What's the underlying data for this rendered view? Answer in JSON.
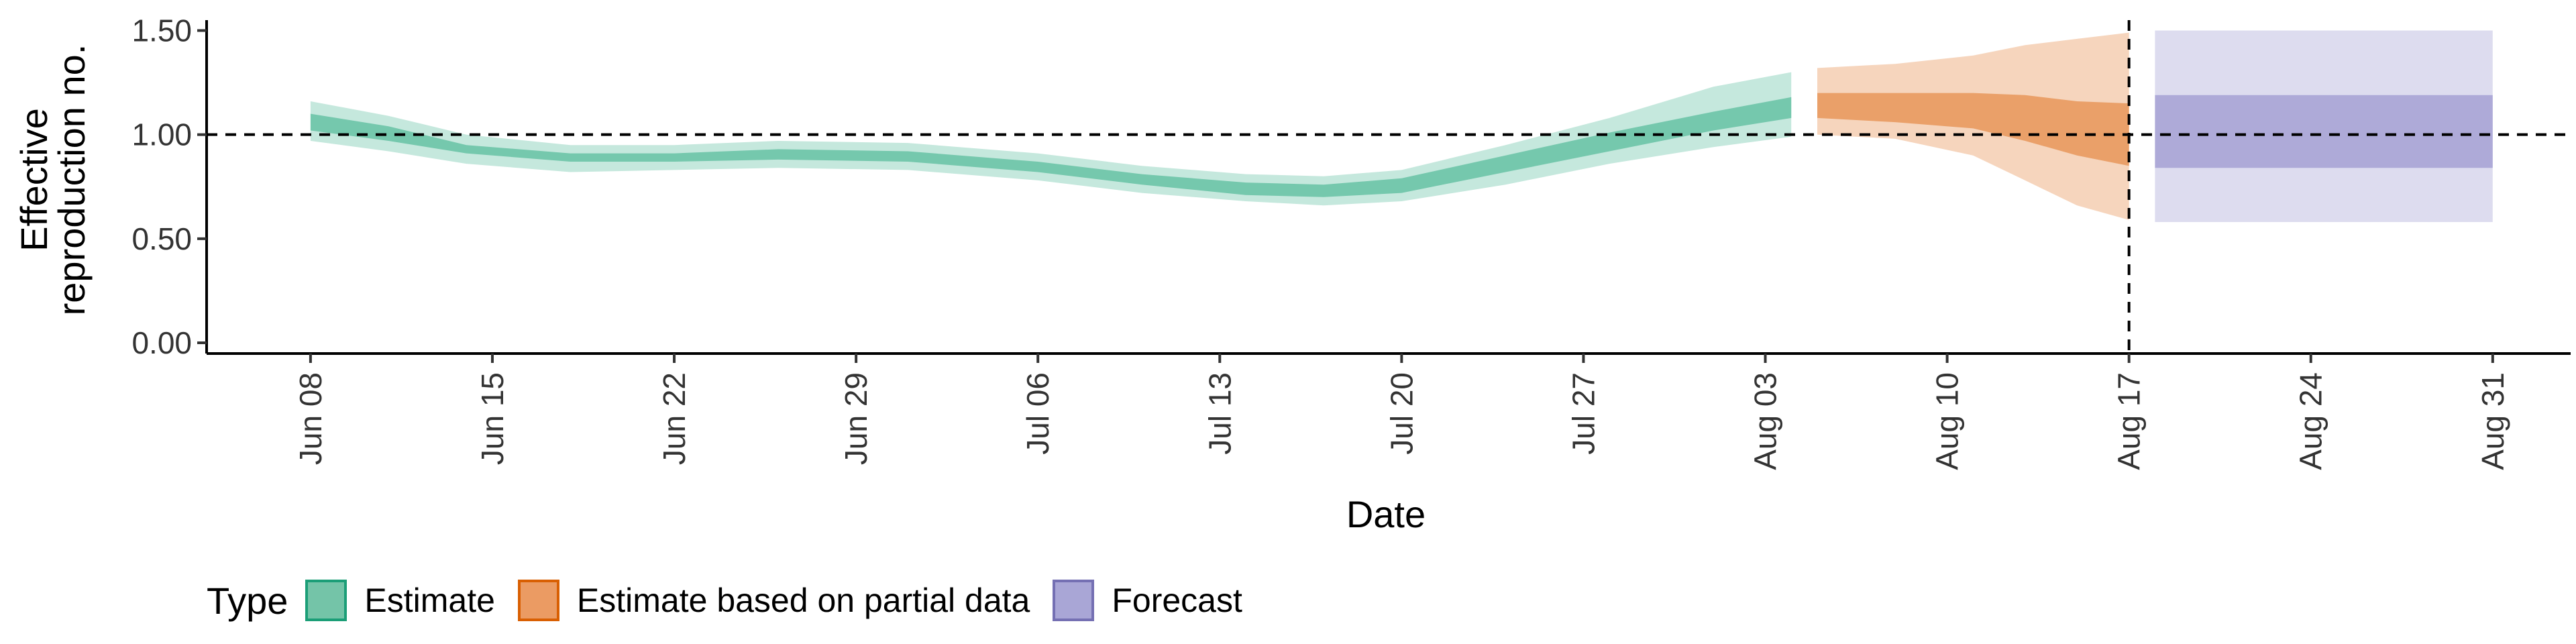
{
  "chart_data": {
    "type": "area",
    "xlabel": "Date",
    "ylabel_lines": [
      "Effective",
      "reproduction no."
    ],
    "x_ticks": [
      "Jun 08",
      "Jun 15",
      "Jun 22",
      "Jun 29",
      "Jul 06",
      "Jul 13",
      "Jul 20",
      "Jul 27",
      "Aug 03",
      "Aug 10",
      "Aug 17",
      "Aug 24",
      "Aug 31"
    ],
    "y_ticks": [
      "0.00",
      "0.50",
      "1.00",
      "1.50"
    ],
    "ylim": [
      0,
      1.55
    ],
    "xlim": [
      "2020-06-04",
      "2020-09-03"
    ],
    "reference_line_y": 1.0,
    "reference_line_x": "Aug 17",
    "grid": false,
    "legend": {
      "title": "Type",
      "position": "bottom-left",
      "entries": [
        "Estimate",
        "Estimate based on partial data",
        "Forecast"
      ]
    },
    "colors": {
      "Estimate": "#66c2a5",
      "Estimate based on partial data": "#e8975a",
      "Forecast": "#9d9ad0"
    },
    "series": [
      {
        "name": "Estimate",
        "columns": [
          "date",
          "outer_lower",
          "inner_lower",
          "inner_upper",
          "outer_upper"
        ],
        "points": [
          [
            "2020-06-08",
            0.97,
            1.02,
            1.1,
            1.16
          ],
          [
            "2020-06-11",
            0.92,
            0.97,
            1.04,
            1.09
          ],
          [
            "2020-06-14",
            0.86,
            0.91,
            0.95,
            1.0
          ],
          [
            "2020-06-18",
            0.82,
            0.87,
            0.91,
            0.95
          ],
          [
            "2020-06-22",
            0.83,
            0.87,
            0.91,
            0.95
          ],
          [
            "2020-06-26",
            0.84,
            0.88,
            0.93,
            0.97
          ],
          [
            "2020-07-01",
            0.83,
            0.87,
            0.92,
            0.96
          ],
          [
            "2020-07-06",
            0.78,
            0.82,
            0.87,
            0.91
          ],
          [
            "2020-07-10",
            0.72,
            0.76,
            0.81,
            0.85
          ],
          [
            "2020-07-14",
            0.68,
            0.71,
            0.77,
            0.81
          ],
          [
            "2020-07-17",
            0.66,
            0.7,
            0.76,
            0.8
          ],
          [
            "2020-07-20",
            0.68,
            0.72,
            0.79,
            0.83
          ],
          [
            "2020-07-24",
            0.76,
            0.82,
            0.9,
            0.95
          ],
          [
            "2020-07-28",
            0.86,
            0.92,
            1.01,
            1.08
          ],
          [
            "2020-08-01",
            0.94,
            1.02,
            1.11,
            1.23
          ],
          [
            "2020-08-04",
            0.99,
            1.08,
            1.18,
            1.3
          ]
        ]
      },
      {
        "name": "Estimate based on partial data",
        "columns": [
          "date",
          "outer_lower",
          "inner_lower",
          "inner_upper",
          "outer_upper"
        ],
        "points": [
          [
            "2020-08-05",
            1.0,
            1.08,
            1.2,
            1.32
          ],
          [
            "2020-08-08",
            0.98,
            1.06,
            1.2,
            1.34
          ],
          [
            "2020-08-11",
            0.9,
            1.03,
            1.2,
            1.38
          ],
          [
            "2020-08-13",
            0.78,
            0.97,
            1.19,
            1.43
          ],
          [
            "2020-08-15",
            0.66,
            0.9,
            1.16,
            1.46
          ],
          [
            "2020-08-17",
            0.59,
            0.85,
            1.15,
            1.49
          ]
        ]
      },
      {
        "name": "Forecast",
        "columns": [
          "date",
          "outer_lower",
          "inner_lower",
          "inner_upper",
          "outer_upper"
        ],
        "points": [
          [
            "2020-08-18",
            0.58,
            0.84,
            1.19,
            1.5
          ],
          [
            "2020-08-31",
            0.58,
            0.84,
            1.19,
            1.5
          ]
        ]
      }
    ]
  }
}
